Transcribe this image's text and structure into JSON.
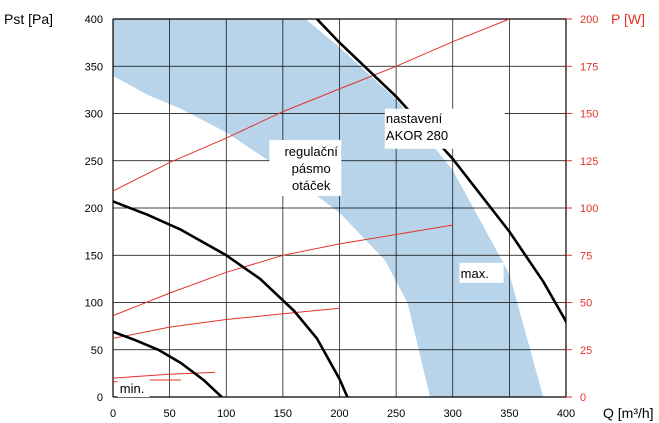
{
  "chart_data": {
    "type": "line",
    "xlabel": "Q [m³/h]",
    "ylabel": "Pst [Pa]",
    "y2label": "P [W]",
    "xlim": [
      0,
      400
    ],
    "ylim": [
      0,
      400
    ],
    "y2lim": [
      0,
      200
    ],
    "x_ticks": [
      "0",
      "50",
      "100",
      "150",
      "200",
      "250",
      "300",
      "350",
      "400"
    ],
    "y_ticks": [
      "0",
      "50",
      "100",
      "150",
      "200",
      "250",
      "300",
      "350",
      "400"
    ],
    "y2_ticks": [
      "0",
      "25",
      "50",
      "75",
      "100",
      "125",
      "150",
      "175",
      "200"
    ],
    "grid": true,
    "colors": {
      "pressure": "#000000",
      "power": "#e4332a",
      "band": "#b8d4ea",
      "grid": "#000000",
      "y2axis": "#e4332a"
    },
    "band": {
      "upper": [
        [
          0,
          400
        ],
        [
          100,
          400
        ],
        [
          170,
          400
        ],
        [
          200,
          370
        ],
        [
          250,
          315
        ],
        [
          300,
          240
        ],
        [
          350,
          130
        ],
        [
          380,
          0
        ]
      ],
      "lower": [
        [
          0,
          340
        ],
        [
          30,
          320
        ],
        [
          60,
          305
        ],
        [
          100,
          280
        ],
        [
          150,
          240
        ],
        [
          200,
          195
        ],
        [
          240,
          145
        ],
        [
          260,
          100
        ],
        [
          270,
          50
        ],
        [
          280,
          0
        ]
      ]
    },
    "pressure_series": [
      {
        "key": "max",
        "points": [
          [
            180,
            400
          ],
          [
            200,
            375
          ],
          [
            250,
            318
          ],
          [
            300,
            252
          ],
          [
            350,
            175
          ],
          [
            380,
            122
          ],
          [
            400,
            80
          ],
          [
            430,
            0
          ]
        ]
      },
      {
        "key": "mid",
        "points": [
          [
            0,
            207
          ],
          [
            30,
            193
          ],
          [
            60,
            177
          ],
          [
            100,
            150
          ],
          [
            130,
            125
          ],
          [
            160,
            91
          ],
          [
            180,
            62
          ],
          [
            200,
            19
          ],
          [
            207,
            0
          ]
        ]
      },
      {
        "key": "min",
        "points": [
          [
            0,
            69
          ],
          [
            20,
            60
          ],
          [
            40,
            50
          ],
          [
            60,
            36
          ],
          [
            80,
            18
          ],
          [
            96,
            0
          ]
        ]
      }
    ],
    "power_series": [
      {
        "key": "p_max",
        "points": [
          [
            0,
            109
          ],
          [
            50,
            124
          ],
          [
            100,
            137
          ],
          [
            150,
            151
          ],
          [
            200,
            163
          ],
          [
            250,
            175
          ],
          [
            300,
            188
          ],
          [
            350,
            200
          ]
        ]
      },
      {
        "key": "p_high",
        "points": [
          [
            0,
            43
          ],
          [
            50,
            55
          ],
          [
            100,
            66
          ],
          [
            150,
            75
          ],
          [
            200,
            81
          ],
          [
            250,
            86
          ],
          [
            300,
            91
          ]
        ]
      },
      {
        "key": "p_mid",
        "points": [
          [
            0,
            31
          ],
          [
            50,
            37
          ],
          [
            100,
            41
          ],
          [
            150,
            44
          ],
          [
            200,
            47
          ]
        ]
      },
      {
        "key": "p_low1",
        "points": [
          [
            0,
            10
          ],
          [
            50,
            12
          ],
          [
            90,
            13
          ]
        ]
      },
      {
        "key": "p_low2",
        "points": [
          [
            0,
            8
          ],
          [
            30,
            9
          ],
          [
            60,
            9
          ]
        ]
      }
    ],
    "annotations": {
      "band_label": [
        "regulační",
        "pásmo",
        "otáček"
      ],
      "setting_label": [
        "nastavení",
        "AKOR 280"
      ],
      "max_label": "max.",
      "min_label": "min."
    }
  }
}
